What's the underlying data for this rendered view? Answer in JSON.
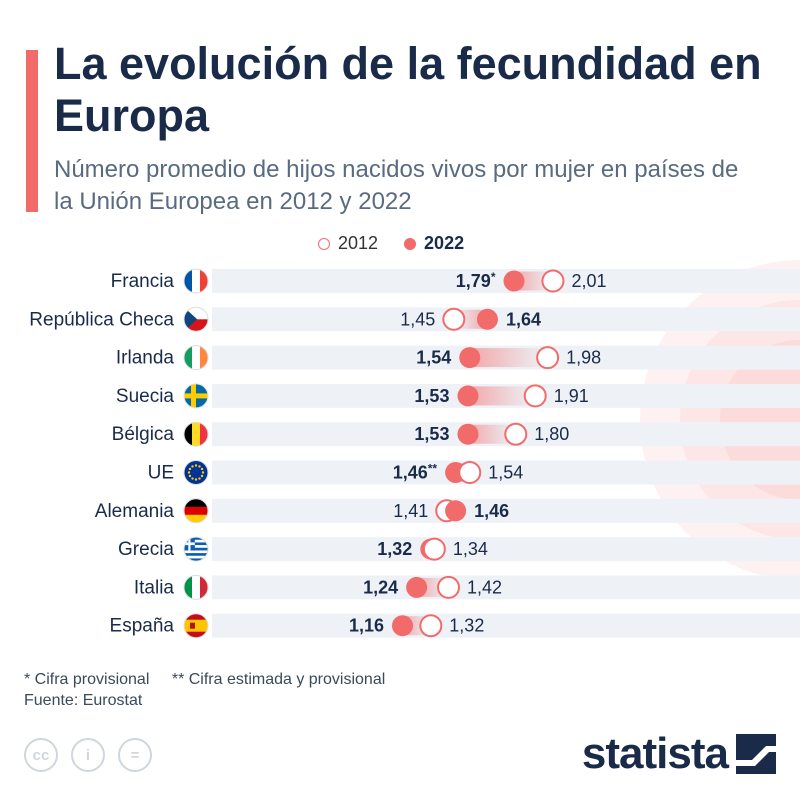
{
  "title": "La evolución de la fecundidad en Europa",
  "subtitle": "Número promedio de hijos nacidos vivos por mujer en países de la Unión Europea en 2012 y 2022",
  "legend": {
    "y2012": "2012",
    "y2022": "2022"
  },
  "colors": {
    "accent": "#f26b6b",
    "text": "#1a2b4a",
    "row_bg": "#eef2f7"
  },
  "chart_data": {
    "type": "dumbbell",
    "series": [
      {
        "name": "2012",
        "style": "hollow"
      },
      {
        "name": "2022",
        "style": "filled"
      }
    ],
    "rows": [
      {
        "country": "Francia",
        "flag": "france-flag",
        "v2012": 2.01,
        "v2022": 1.79,
        "label2012": "2,01",
        "label2022": "1,79",
        "mark2022": "*"
      },
      {
        "country": "República Checa",
        "flag": "czech-flag",
        "v2012": 1.45,
        "v2022": 1.64,
        "label2012": "1,45",
        "label2022": "1,64",
        "mark2022": ""
      },
      {
        "country": "Irlanda",
        "flag": "ireland-flag",
        "v2012": 1.98,
        "v2022": 1.54,
        "label2012": "1,98",
        "label2022": "1,54",
        "mark2022": ""
      },
      {
        "country": "Suecia",
        "flag": "sweden-flag",
        "v2012": 1.91,
        "v2022": 1.53,
        "label2012": "1,91",
        "label2022": "1,53",
        "mark2022": ""
      },
      {
        "country": "Bélgica",
        "flag": "belgium-flag",
        "v2012": 1.8,
        "v2022": 1.53,
        "label2012": "1,80",
        "label2022": "1,53",
        "mark2022": ""
      },
      {
        "country": "UE",
        "flag": "eu-flag",
        "v2012": 1.54,
        "v2022": 1.46,
        "label2012": "1,54",
        "label2022": "1,46",
        "mark2022": "**"
      },
      {
        "country": "Alemania",
        "flag": "germany-flag",
        "v2012": 1.41,
        "v2022": 1.46,
        "label2012": "1,41",
        "label2022": "1,46",
        "mark2022": ""
      },
      {
        "country": "Grecia",
        "flag": "greece-flag",
        "v2012": 1.34,
        "v2022": 1.32,
        "label2012": "1,34",
        "label2022": "1,32",
        "mark2022": ""
      },
      {
        "country": "Italia",
        "flag": "italy-flag",
        "v2012": 1.42,
        "v2022": 1.24,
        "label2012": "1,42",
        "label2022": "1,24",
        "mark2022": ""
      },
      {
        "country": "España",
        "flag": "spain-flag",
        "v2012": 1.32,
        "v2022": 1.16,
        "label2012": "1,32",
        "label2022": "1,16",
        "mark2022": ""
      }
    ]
  },
  "footnotes": {
    "provisional": "* Cifra provisional",
    "estimated": "** Cifra estimada y provisional"
  },
  "source": "Fuente: Eurostat",
  "license_icons": [
    "cc-icon",
    "attribution-icon",
    "equals-icon"
  ],
  "license_glyphs": {
    "cc": "cc",
    "by": "i",
    "nd": "="
  },
  "brand": "statista"
}
